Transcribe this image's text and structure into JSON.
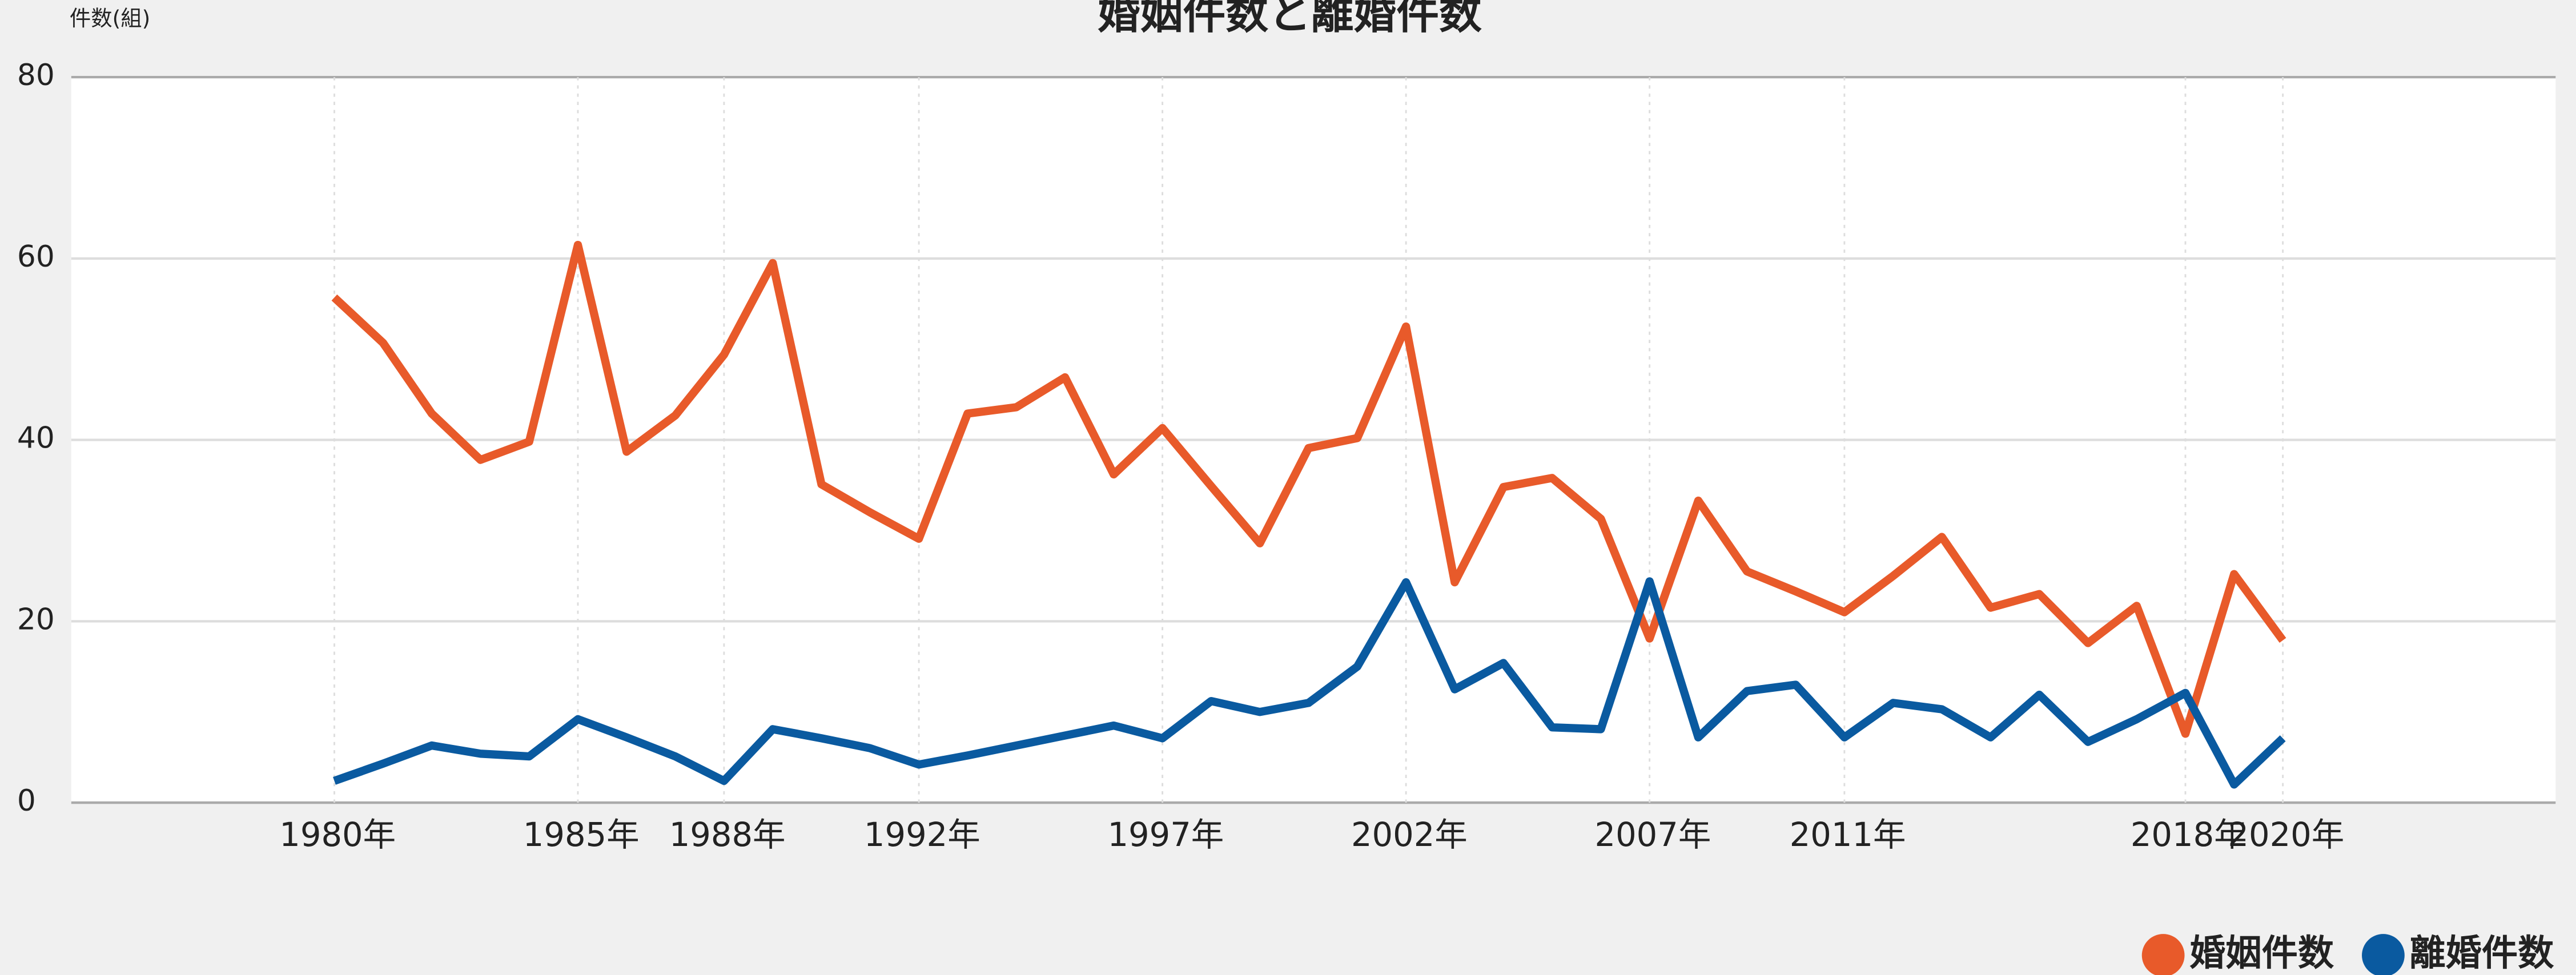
{
  "chart_data": {
    "type": "line",
    "title": "婚姻件数と離婚件数",
    "y_label": "件数(組)",
    "x": [
      1980,
      1981,
      1982,
      1983,
      1984,
      1985,
      1986,
      1987,
      1988,
      1989,
      1990,
      1991,
      1992,
      1993,
      1994,
      1995,
      1996,
      1997,
      1998,
      1999,
      2000,
      2001,
      2002,
      2003,
      2004,
      2005,
      2006,
      2007,
      2008,
      2009,
      2010,
      2011,
      2012,
      2013,
      2014,
      2015,
      2016,
      2017,
      2018,
      2019,
      2020
    ],
    "series": [
      {
        "name": "婚姻件数",
        "color": "#e85a2a",
        "values": [
          55.7,
          50.7,
          42.9,
          37.8,
          39.8,
          61.5,
          38.7,
          42.7,
          49.4,
          59.5,
          35.1,
          32.0,
          29.1,
          42.9,
          43.6,
          46.9,
          36.2,
          41.3,
          34.9,
          28.6,
          39.1,
          40.2,
          52.5,
          24.3,
          34.8,
          35.8,
          31.3,
          18.1,
          33.3,
          25.5,
          23.3,
          21.0,
          25.0,
          29.3,
          21.5,
          23.0,
          17.6,
          21.7,
          7.6,
          25.2,
          17.9
        ]
      },
      {
        "name": "離婚件数",
        "color": "#0a5aa0",
        "values": [
          2.4,
          4.3,
          6.3,
          5.4,
          5.1,
          9.2,
          7.2,
          5.1,
          2.4,
          8.1,
          7.1,
          6.0,
          4.2,
          5.2,
          6.3,
          7.4,
          8.5,
          7.1,
          11.2,
          10.0,
          11.0,
          15.0,
          24.3,
          12.5,
          15.4,
          8.3,
          8.1,
          24.4,
          7.2,
          12.3,
          13.0,
          7.2,
          11.0,
          10.3,
          7.2,
          11.9,
          6.7,
          9.2,
          12.1,
          2.0,
          7.1
        ]
      }
    ],
    "xlim": [
      1974.6,
      2025.6
    ],
    "xticks": [
      {
        "value": 1980,
        "label": "1980年"
      },
      {
        "value": 1985,
        "label": "1985年"
      },
      {
        "value": 1988,
        "label": "1988年"
      },
      {
        "value": 1992,
        "label": "1992年"
      },
      {
        "value": 1997,
        "label": "1997年"
      },
      {
        "value": 2002,
        "label": "2002年"
      },
      {
        "value": 2007,
        "label": "2007年"
      },
      {
        "value": 2011,
        "label": "2011年"
      },
      {
        "value": 2018,
        "label": "2018年"
      },
      {
        "value": 2020,
        "label": "2020年"
      }
    ],
    "highlighted_xticks": [
      2002,
      2007
    ],
    "highlight_color": "#e85a2a",
    "ylim": [
      0,
      80
    ],
    "yticks": [
      0,
      20,
      40,
      60,
      80
    ],
    "grid": true,
    "legend": "bottom-right"
  }
}
